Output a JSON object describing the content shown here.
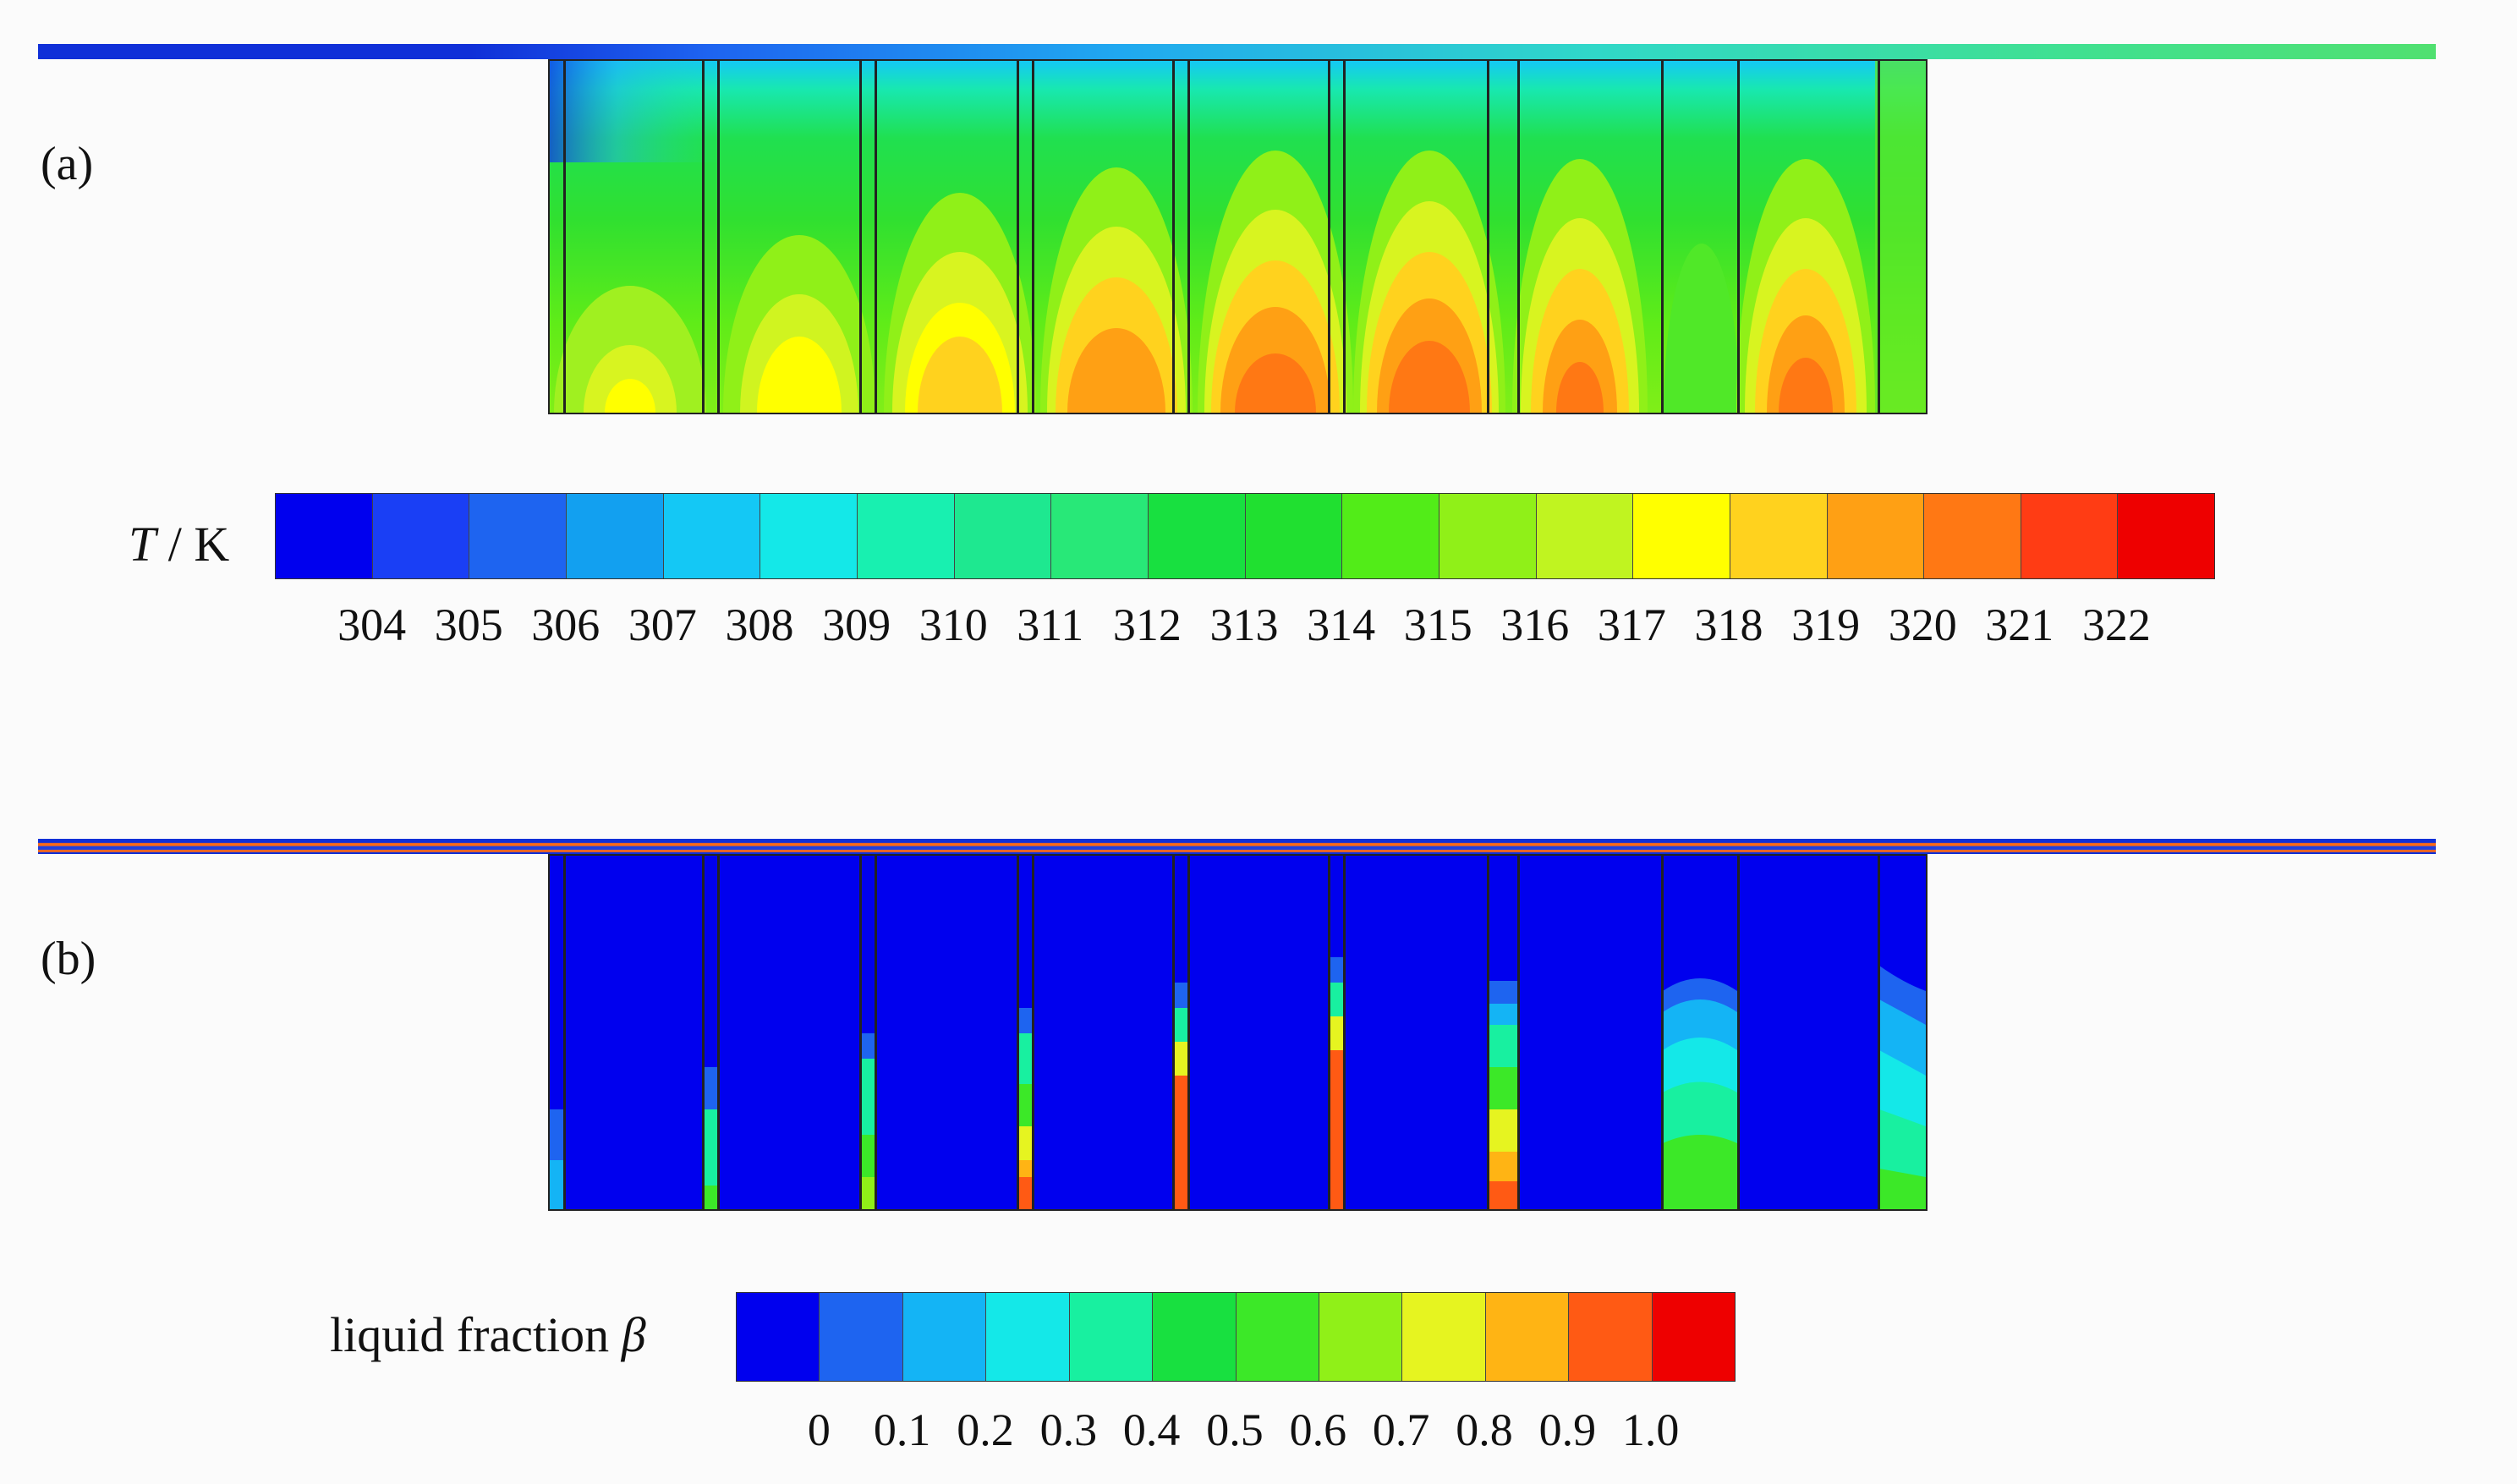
{
  "panel_a": {
    "label": "(a)",
    "legend_title_symbol": "T",
    "legend_title_unit": " / K",
    "tick_labels": [
      "304",
      "305",
      "306",
      "307",
      "308",
      "309",
      "310",
      "311",
      "312",
      "313",
      "314",
      "315",
      "316",
      "317",
      "318",
      "319",
      "320",
      "321",
      "322"
    ],
    "colors": [
      "#0000ee",
      "#1a3ff5",
      "#1e64f0",
      "#12a0f0",
      "#14c8f5",
      "#14e8e8",
      "#18f0b0",
      "#1ee890",
      "#28e878",
      "#18e040",
      "#20e030",
      "#52ec18",
      "#90f018",
      "#c0f420",
      "#ffff00",
      "#ffd21e",
      "#ffa014",
      "#ff7814",
      "#ff3c14",
      "#ee0000"
    ]
  },
  "panel_b": {
    "label": "(b)",
    "legend_title_text": "liquid fraction ",
    "legend_title_symbol": "β",
    "tick_labels": [
      "0",
      "0.1",
      "0.2",
      "0.3",
      "0.4",
      "0.5",
      "0.6",
      "0.7",
      "0.8",
      "0.9",
      "1.0"
    ],
    "colors": [
      "#0000ee",
      "#1e64f0",
      "#14b4f5",
      "#14e8e8",
      "#18f0a0",
      "#18e040",
      "#3ce828",
      "#90f018",
      "#e6f420",
      "#ffb414",
      "#ff5a14",
      "#ee0000"
    ]
  }
}
